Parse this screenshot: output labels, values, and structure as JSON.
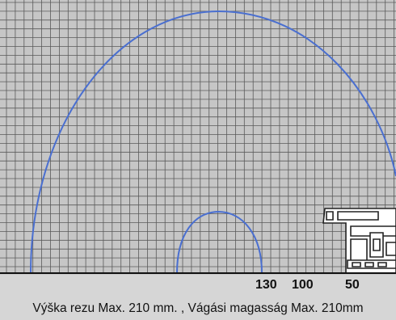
{
  "scale_labels": {
    "v130": "130",
    "v100": "100",
    "v50": "50"
  },
  "caption": "Výška rezu Max. 210 mm. , Vágási magasság Max. 210mm",
  "colors": {
    "grid_background": "#c6c6c6",
    "grid_line": "#5a5a5a",
    "arc": "#4a6fd0",
    "band": "#d6d6d6",
    "profile": "#222222"
  }
}
